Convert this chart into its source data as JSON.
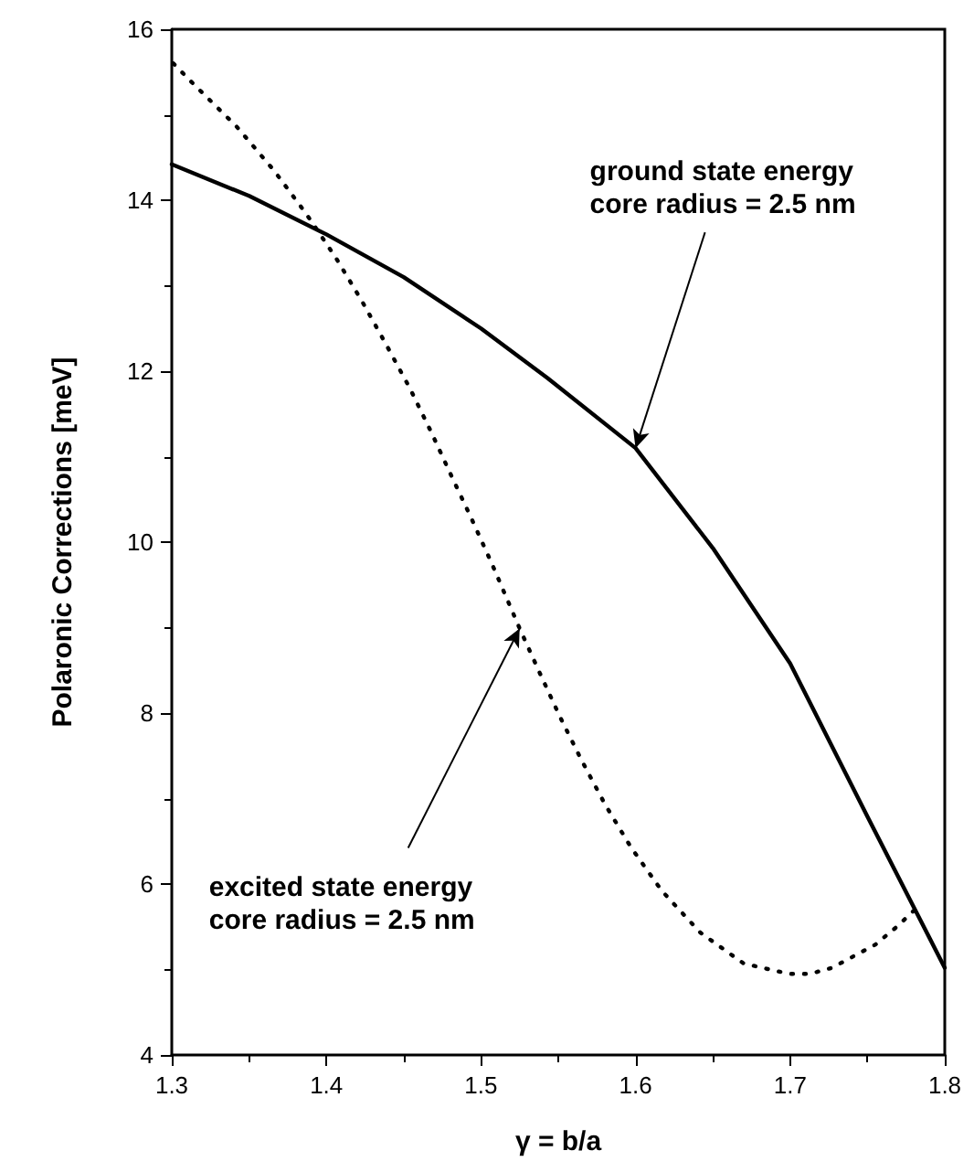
{
  "chart_data": {
    "type": "line",
    "xlabel": "γ = b/a",
    "ylabel": "Polaronic Corrections [meV]",
    "xlim": [
      1.3,
      1.8
    ],
    "xticks": [
      1.3,
      1.4,
      1.5,
      1.6,
      1.7,
      1.8
    ],
    "ylim": [
      4,
      16
    ],
    "yticks": [
      4,
      6,
      8,
      10,
      12,
      14,
      16
    ],
    "grid": false,
    "marker": "none",
    "series": [
      {
        "color": "#000000",
        "line_style": "solid",
        "x": [
          1.3,
          1.35,
          1.4,
          1.45,
          1.5,
          1.543,
          1.6,
          1.65,
          1.7,
          1.75,
          1.8
        ],
        "values": [
          14.42,
          14.05,
          13.6,
          13.1,
          12.5,
          11.92,
          11.1,
          9.93,
          8.58,
          6.79,
          5.02
        ]
      },
      {
        "color": "#000000",
        "line_style": "dotted",
        "x": [
          1.301,
          1.314,
          1.342,
          1.366,
          1.387,
          1.406,
          1.423,
          1.439,
          1.454,
          1.468,
          1.481,
          1.494,
          1.507,
          1.525,
          1.538,
          1.551,
          1.565,
          1.58,
          1.597,
          1.617,
          1.642,
          1.67,
          1.699,
          1.713,
          1.727,
          1.755,
          1.769,
          1.783
        ],
        "values": [
          15.6,
          15.36,
          14.86,
          14.35,
          13.84,
          13.33,
          12.82,
          12.3,
          11.8,
          11.28,
          10.77,
          10.27,
          9.75,
          8.99,
          8.47,
          7.96,
          7.45,
          6.94,
          6.43,
          5.92,
          5.43,
          5.07,
          4.95,
          4.95,
          5.02,
          5.29,
          5.5,
          5.74
        ]
      }
    ],
    "annotations": [
      {
        "text": "ground state energy\ncore radius = 2.5 nm",
        "x": 1.6,
        "y": 11.1
      },
      {
        "text": "excited state energy\ncore radius = 2.5 nm",
        "x": 1.525,
        "y": 8.99
      }
    ]
  }
}
